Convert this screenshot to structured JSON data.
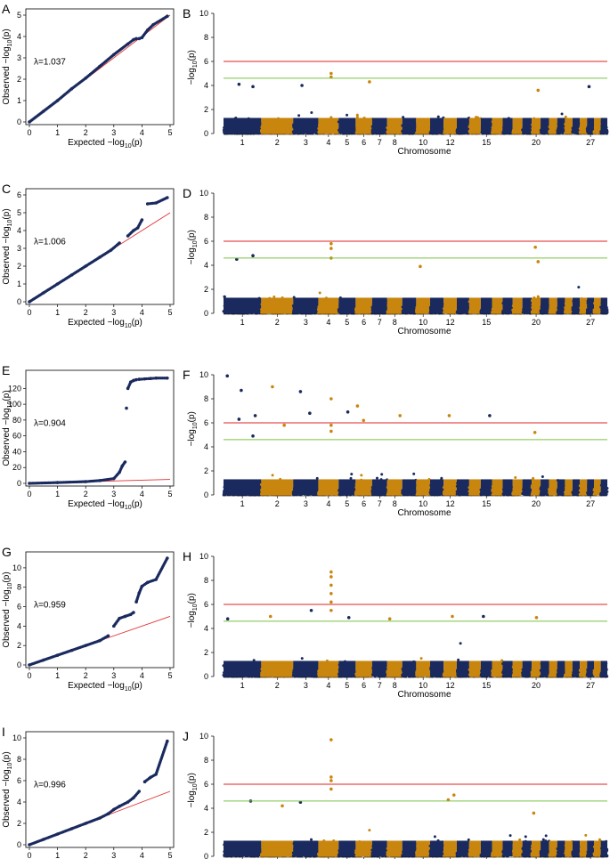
{
  "colors": {
    "navy": "#1a2a5e",
    "orange": "#c9860f",
    "red_line": "#e02020",
    "green_line": "#7ac043",
    "qq_line": "#e03030"
  },
  "chart_data": [
    {
      "panel": "A",
      "type": "scatter",
      "title": "",
      "xlabel_pre": "Expected  −log",
      "xlabel_sub": "10",
      "xlabel_post": "(p)",
      "ylabel_pre": "Observed  −log",
      "ylabel_sub": "10",
      "ylabel_post": "(p)",
      "xlim": [
        0,
        5
      ],
      "ylim": [
        0,
        5
      ],
      "xticks": [
        0,
        1,
        2,
        3,
        4,
        5
      ],
      "yticks": [
        0,
        1,
        2,
        3,
        4,
        5
      ],
      "lambda": "λ=1.037",
      "x": [
        0.0,
        0.5,
        1.0,
        1.5,
        2.0,
        2.5,
        3.0,
        3.5,
        3.7,
        3.8,
        3.9,
        4.0,
        4.2,
        4.4,
        4.9
      ],
      "y": [
        0.0,
        0.5,
        1.0,
        1.55,
        2.05,
        2.6,
        3.15,
        3.65,
        3.85,
        3.9,
        3.9,
        3.95,
        4.3,
        4.55,
        4.95
      ]
    },
    {
      "panel": "B",
      "type": "manhattan",
      "xlabel": "Chromosome",
      "ylabel_pre": "−log",
      "ylabel_sub": "10",
      "ylabel_post": "(p)",
      "ylim": [
        0,
        10
      ],
      "yticks": [
        0,
        2,
        4,
        6,
        8,
        10
      ],
      "chrom_labels": [
        "1",
        "2",
        "3",
        "4",
        "5",
        "6",
        "7",
        "8",
        "10",
        "12",
        "15",
        "20",
        "27"
      ],
      "threshold_red": 6.0,
      "threshold_green": 4.6,
      "peaks": [
        {
          "chrom": 4,
          "value": 5.0
        },
        {
          "chrom": 4,
          "value": 4.7
        },
        {
          "chrom": 6,
          "value": 4.3
        },
        {
          "chrom": 1,
          "value": 4.1
        },
        {
          "chrom": 1,
          "value": 3.9
        },
        {
          "chrom": 3,
          "value": 4.0
        },
        {
          "chrom": 20,
          "value": 3.6
        },
        {
          "chrom": 27,
          "value": 3.9
        }
      ]
    },
    {
      "panel": "C",
      "type": "scatter",
      "title": "",
      "xlabel_pre": "Expected  −log",
      "xlabel_sub": "10",
      "xlabel_post": "(p)",
      "ylabel_pre": "Observed  −log",
      "ylabel_sub": "10",
      "ylabel_post": "(p)",
      "xlim": [
        0,
        5
      ],
      "ylim": [
        0,
        6
      ],
      "xticks": [
        0,
        1,
        2,
        3,
        4,
        5
      ],
      "yticks": [
        0,
        1,
        2,
        3,
        4,
        5,
        6
      ],
      "lambda": "λ=1.006",
      "x": [
        0.0,
        0.5,
        1.0,
        1.5,
        2.0,
        2.5,
        2.9,
        3.2,
        3.5,
        3.7,
        3.85,
        4.0,
        4.2,
        4.5,
        4.9
      ],
      "y": [
        0.0,
        0.5,
        1.0,
        1.5,
        2.0,
        2.5,
        2.9,
        3.3,
        3.7,
        4.0,
        4.15,
        4.6,
        5.5,
        5.55,
        5.85
      ]
    },
    {
      "panel": "D",
      "type": "manhattan",
      "xlabel": "Chromosome",
      "ylabel_pre": "−log",
      "ylabel_sub": "10",
      "ylabel_post": "(p)",
      "ylim": [
        0,
        10
      ],
      "yticks": [
        0,
        2,
        4,
        6,
        8,
        10
      ],
      "chrom_labels": [
        "1",
        "2",
        "3",
        "4",
        "5",
        "6",
        "7",
        "8",
        "10",
        "12",
        "15",
        "20",
        "27"
      ],
      "threshold_red": 6.0,
      "threshold_green": 4.6,
      "peaks": [
        {
          "chrom": 4,
          "value": 5.8
        },
        {
          "chrom": 4,
          "value": 5.4
        },
        {
          "chrom": 4,
          "value": 4.6
        },
        {
          "chrom": 20,
          "value": 5.5
        },
        {
          "chrom": 1,
          "value": 4.8
        },
        {
          "chrom": 1,
          "value": 4.5
        },
        {
          "chrom": 20,
          "value": 4.3
        },
        {
          "chrom": 10,
          "value": 3.9
        }
      ]
    },
    {
      "panel": "E",
      "type": "scatter",
      "title": "",
      "xlabel_pre": "Expected  −log",
      "xlabel_sub": "10",
      "xlabel_post": "(p)",
      "ylabel_pre": "Observed  −log",
      "ylabel_sub": "10",
      "ylabel_post": "(p)",
      "xlim": [
        0,
        5
      ],
      "ylim": [
        0,
        135
      ],
      "xticks": [
        0,
        1,
        2,
        3,
        4,
        5
      ],
      "yticks": [
        0,
        20,
        40,
        60,
        80,
        100,
        120
      ],
      "lambda": "λ=0.904",
      "x": [
        0.0,
        1.0,
        2.0,
        2.5,
        3.0,
        3.2,
        3.3,
        3.4,
        3.45,
        3.5,
        3.6,
        3.7,
        3.8,
        3.9,
        4.1,
        4.3,
        4.5,
        4.9
      ],
      "y": [
        0.0,
        1.0,
        2.2,
        3.5,
        6.0,
        14.0,
        22.0,
        27.0,
        95.0,
        120.0,
        128.0,
        130.0,
        131.0,
        131.5,
        132.0,
        132.5,
        133.0,
        133.0
      ]
    },
    {
      "panel": "F",
      "type": "manhattan",
      "xlabel": "Chromosome",
      "ylabel_pre": "−log",
      "ylabel_sub": "10",
      "ylabel_post": "(p)",
      "ylim": [
        0,
        10
      ],
      "yticks": [
        0,
        2,
        4,
        6,
        8,
        10
      ],
      "chrom_labels": [
        "1",
        "2",
        "3",
        "4",
        "5",
        "6",
        "7",
        "8",
        "10",
        "12",
        "15",
        "20",
        "27"
      ],
      "threshold_red": 6.0,
      "threshold_green": 4.6,
      "peaks": [
        {
          "chrom": 1,
          "value": 9.9
        },
        {
          "chrom": 1,
          "value": 8.7
        },
        {
          "chrom": 1,
          "value": 6.6
        },
        {
          "chrom": 1,
          "value": 6.3
        },
        {
          "chrom": 1,
          "value": 4.9
        },
        {
          "chrom": 2,
          "value": 9.0
        },
        {
          "chrom": 2,
          "value": 5.8
        },
        {
          "chrom": 3,
          "value": 8.6
        },
        {
          "chrom": 3,
          "value": 6.8
        },
        {
          "chrom": 4,
          "value": 8.0
        },
        {
          "chrom": 4,
          "value": 5.8
        },
        {
          "chrom": 4,
          "value": 5.3
        },
        {
          "chrom": 5,
          "value": 6.9
        },
        {
          "chrom": 6,
          "value": 7.4
        },
        {
          "chrom": 6,
          "value": 6.2
        },
        {
          "chrom": 8,
          "value": 6.6
        },
        {
          "chrom": 12,
          "value": 6.6
        },
        {
          "chrom": 15,
          "value": 6.6
        },
        {
          "chrom": 20,
          "value": 5.2
        }
      ]
    },
    {
      "panel": "G",
      "type": "scatter",
      "title": "",
      "xlabel_pre": "Expected  −log",
      "xlabel_sub": "10",
      "xlabel_post": "(p)",
      "ylabel_pre": "Observed  −log",
      "ylabel_sub": "10",
      "ylabel_post": "(p)",
      "xlim": [
        0,
        5
      ],
      "ylim": [
        0,
        11
      ],
      "xticks": [
        0,
        1,
        2,
        3,
        4,
        5
      ],
      "yticks": [
        0,
        2,
        4,
        6,
        8,
        10
      ],
      "lambda": "λ=0.959",
      "x": [
        0.0,
        0.5,
        1.0,
        1.5,
        2.0,
        2.5,
        2.8,
        3.0,
        3.2,
        3.4,
        3.6,
        3.7,
        3.8,
        3.9,
        4.0,
        4.2,
        4.5,
        4.9
      ],
      "y": [
        0.0,
        0.5,
        1.0,
        1.5,
        2.0,
        2.5,
        3.0,
        4.0,
        4.8,
        5.0,
        5.2,
        5.4,
        6.5,
        7.4,
        8.1,
        8.5,
        8.8,
        11.0
      ]
    },
    {
      "panel": "H",
      "type": "manhattan",
      "xlabel": "Chromosome",
      "ylabel_pre": "−log",
      "ylabel_sub": "10",
      "ylabel_post": "(p)",
      "ylim": [
        0,
        10
      ],
      "yticks": [
        0,
        2,
        4,
        6,
        8,
        10
      ],
      "chrom_labels": [
        "1",
        "2",
        "3",
        "4",
        "5",
        "6",
        "7",
        "8",
        "10",
        "12",
        "15",
        "20",
        "27"
      ],
      "threshold_red": 6.0,
      "threshold_green": 4.6,
      "peaks": [
        {
          "chrom": 4,
          "value": 8.7
        },
        {
          "chrom": 4,
          "value": 8.3
        },
        {
          "chrom": 4,
          "value": 7.6
        },
        {
          "chrom": 4,
          "value": 6.9
        },
        {
          "chrom": 4,
          "value": 6.2
        },
        {
          "chrom": 4,
          "value": 5.5
        },
        {
          "chrom": 3,
          "value": 5.5
        },
        {
          "chrom": 2,
          "value": 5.0
        },
        {
          "chrom": 12,
          "value": 5.0
        },
        {
          "chrom": 15,
          "value": 5.0
        },
        {
          "chrom": 5,
          "value": 4.9
        },
        {
          "chrom": 8,
          "value": 4.8
        },
        {
          "chrom": 20,
          "value": 4.9
        },
        {
          "chrom": 1,
          "value": 4.8
        }
      ]
    },
    {
      "panel": "I",
      "type": "scatter",
      "title": "",
      "xlabel_pre": "Expected  −log",
      "xlabel_sub": "10",
      "xlabel_post": "(p)",
      "ylabel_pre": "Observed  −log",
      "ylabel_sub": "10",
      "ylabel_post": "(p)",
      "xlim": [
        0,
        5
      ],
      "ylim": [
        0,
        10
      ],
      "xticks": [
        0,
        1,
        2,
        3,
        4,
        5
      ],
      "yticks": [
        0,
        2,
        4,
        6,
        8,
        10
      ],
      "lambda": "λ=0.996",
      "x": [
        0.0,
        0.5,
        1.0,
        1.5,
        2.0,
        2.5,
        2.8,
        3.0,
        3.2,
        3.5,
        3.7,
        3.9,
        4.1,
        4.3,
        4.5,
        4.9
      ],
      "y": [
        0.0,
        0.5,
        1.0,
        1.5,
        2.0,
        2.5,
        2.9,
        3.3,
        3.6,
        4.0,
        4.4,
        5.0,
        5.9,
        6.3,
        6.6,
        9.7
      ]
    },
    {
      "panel": "J",
      "type": "manhattan",
      "xlabel": "Chromosome",
      "ylabel_pre": "−log",
      "ylabel_sub": "10",
      "ylabel_post": "(p)",
      "ylim": [
        0,
        10
      ],
      "yticks": [
        0,
        2,
        4,
        6,
        8,
        10
      ],
      "chrom_labels": [
        "1",
        "2",
        "3",
        "4",
        "5",
        "6",
        "7",
        "8",
        "10",
        "12",
        "15",
        "20",
        "27"
      ],
      "threshold_red": 6.0,
      "threshold_green": 4.6,
      "peaks": [
        {
          "chrom": 4,
          "value": 9.7
        },
        {
          "chrom": 4,
          "value": 6.6
        },
        {
          "chrom": 4,
          "value": 6.3
        },
        {
          "chrom": 4,
          "value": 5.6
        },
        {
          "chrom": 12,
          "value": 5.1
        },
        {
          "chrom": 12,
          "value": 4.7
        },
        {
          "chrom": 1,
          "value": 4.6
        },
        {
          "chrom": 3,
          "value": 4.5
        },
        {
          "chrom": 2,
          "value": 4.2
        },
        {
          "chrom": 20,
          "value": 3.6
        }
      ]
    }
  ]
}
